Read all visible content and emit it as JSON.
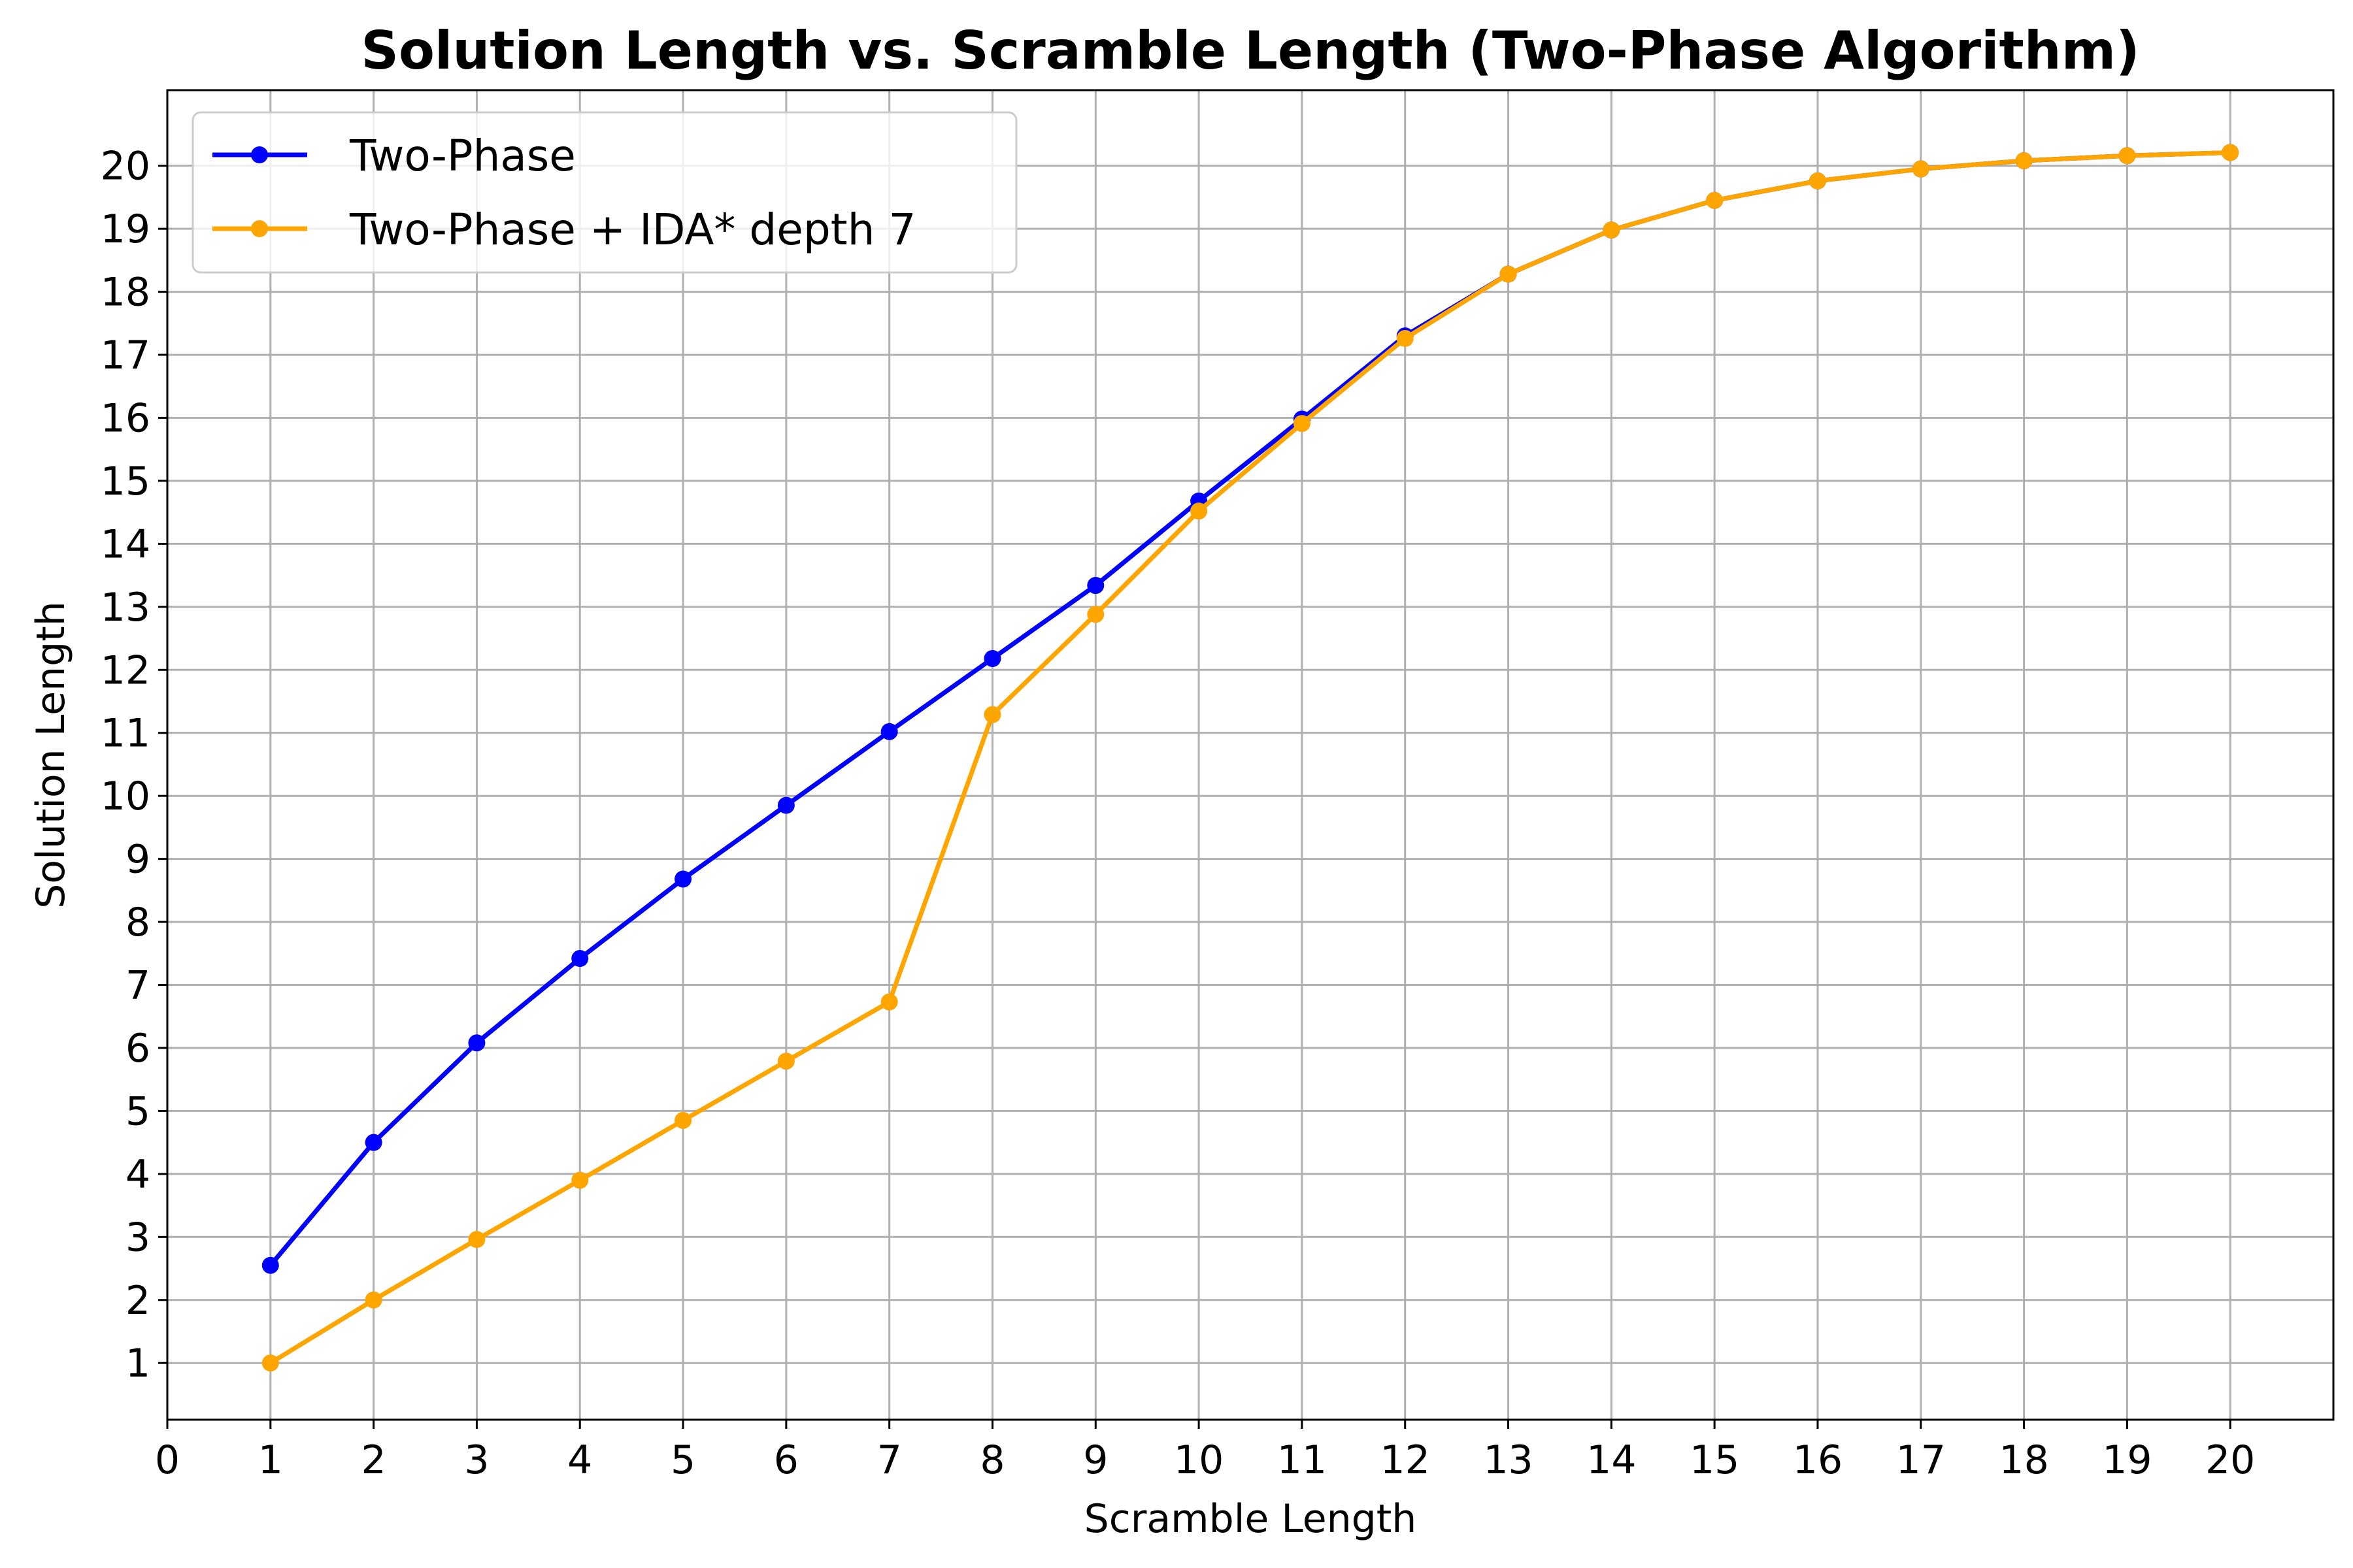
{
  "chart_data": {
    "type": "line",
    "title": "Solution Length vs. Scramble Length (Two-Phase Algorithm)",
    "xlabel": "Scramble Length",
    "ylabel": "Solution Length",
    "xlim": [
      0,
      21
    ],
    "ylim": [
      0.1,
      21.2
    ],
    "xticks": [
      0,
      1,
      2,
      3,
      4,
      5,
      6,
      7,
      8,
      9,
      10,
      11,
      12,
      13,
      14,
      15,
      16,
      17,
      18,
      19,
      20
    ],
    "yticks": [
      1,
      2,
      3,
      4,
      5,
      6,
      7,
      8,
      9,
      10,
      11,
      12,
      13,
      14,
      15,
      16,
      17,
      18,
      19,
      20
    ],
    "grid": true,
    "legend_position": "top-left",
    "x": [
      1,
      2,
      3,
      4,
      5,
      6,
      7,
      8,
      9,
      10,
      11,
      12,
      13,
      14,
      15,
      16,
      17,
      18,
      19,
      20
    ],
    "series": [
      {
        "name": "Two-Phase",
        "color": "#0000ff",
        "values": [
          2.55,
          4.5,
          6.08,
          7.42,
          8.68,
          9.85,
          11.02,
          12.18,
          13.34,
          14.68,
          15.98,
          17.3,
          18.28,
          18.98,
          19.45,
          19.76,
          19.95,
          20.08,
          20.16,
          20.21
        ]
      },
      {
        "name": "Two-Phase + IDA* depth 7",
        "color": "#ffa500",
        "values": [
          1.0,
          2.0,
          2.96,
          3.9,
          4.85,
          5.79,
          6.73,
          11.29,
          12.88,
          14.52,
          15.91,
          17.26,
          18.28,
          18.98,
          19.45,
          19.76,
          19.95,
          20.08,
          20.16,
          20.21
        ]
      }
    ]
  }
}
